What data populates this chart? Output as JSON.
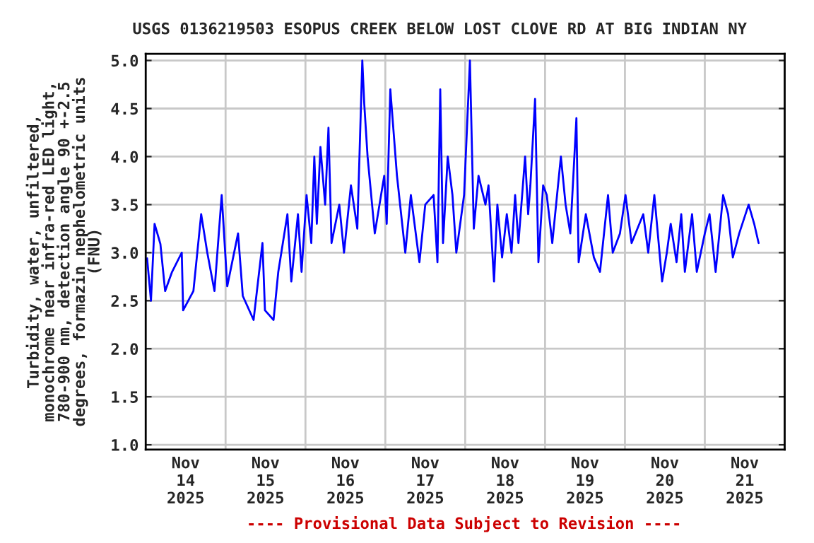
{
  "chart_data": {
    "type": "line",
    "title": "USGS 0136219503 ESOPUS CREEK BELOW LOST CLOVE RD AT BIG INDIAN NY",
    "ylabel": "Turbidity, water, unfiltered,\nmonochrome near infra-red LED light,\n780-900 nm, detection angle 90 +-2.5\ndegrees, formazin nephelometric units\n(FNU)",
    "annotations": [
      "---- Provisional Data Subject to Revision ----"
    ],
    "x": [
      "2025-11-14T00:25",
      "2025-11-14T01:35",
      "2025-11-14T02:40",
      "2025-11-14T04:25",
      "2025-11-14T05:50",
      "2025-11-14T07:55",
      "2025-11-14T10:50",
      "2025-11-14T11:15",
      "2025-11-14T14:20",
      "2025-11-14T16:40",
      "2025-11-14T18:30",
      "2025-11-14T20:40",
      "2025-11-14T22:50",
      "2025-11-15T00:30",
      "2025-11-15T03:45",
      "2025-11-15T05:10",
      "2025-11-15T08:25",
      "2025-11-15T11:05",
      "2025-11-15T11:50",
      "2025-11-15T14:25",
      "2025-11-15T15:50",
      "2025-11-15T18:35",
      "2025-11-15T19:45",
      "2025-11-15T21:45",
      "2025-11-15T22:50",
      "2025-11-16T00:20",
      "2025-11-16T01:45",
      "2025-11-16T02:40",
      "2025-11-16T03:25",
      "2025-11-16T04:30",
      "2025-11-16T05:55",
      "2025-11-16T06:55",
      "2025-11-16T07:50",
      "2025-11-16T10:10",
      "2025-11-16T11:35",
      "2025-11-16T13:40",
      "2025-11-16T15:35",
      "2025-11-16T17:05",
      "2025-11-16T17:40",
      "2025-11-16T18:40",
      "2025-11-16T20:50",
      "2025-11-16T23:40",
      "2025-11-17T00:25",
      "2025-11-17T01:30",
      "2025-11-17T03:30",
      "2025-11-17T06:00",
      "2025-11-17T07:40",
      "2025-11-17T10:15",
      "2025-11-17T12:00",
      "2025-11-17T14:30",
      "2025-11-17T15:40",
      "2025-11-17T16:30",
      "2025-11-17T17:20",
      "2025-11-17T18:45",
      "2025-11-17T20:10",
      "2025-11-17T21:20",
      "2025-11-17T23:40",
      "2025-11-18T01:25",
      "2025-11-18T02:35",
      "2025-11-18T04:00",
      "2025-11-18T06:05",
      "2025-11-18T07:00",
      "2025-11-18T08:40",
      "2025-11-18T09:40",
      "2025-11-18T11:05",
      "2025-11-18T12:30",
      "2025-11-18T13:55",
      "2025-11-18T15:00",
      "2025-11-18T16:00",
      "2025-11-18T18:00",
      "2025-11-18T18:55",
      "2025-11-18T19:35",
      "2025-11-18T21:00",
      "2025-11-18T22:00",
      "2025-11-18T23:25",
      "2025-11-19T00:30",
      "2025-11-19T02:10",
      "2025-11-19T04:45",
      "2025-11-19T06:10",
      "2025-11-19T07:35",
      "2025-11-19T09:25",
      "2025-11-19T10:05",
      "2025-11-19T12:15",
      "2025-11-19T14:40",
      "2025-11-19T16:30",
      "2025-11-19T18:55",
      "2025-11-19T20:20",
      "2025-11-19T22:30",
      "2025-11-20T00:10",
      "2025-11-20T02:00",
      "2025-11-20T05:30",
      "2025-11-20T07:00",
      "2025-11-20T08:50",
      "2025-11-20T11:10",
      "2025-11-20T12:35",
      "2025-11-20T13:45",
      "2025-11-20T15:30",
      "2025-11-20T16:55",
      "2025-11-20T18:00",
      "2025-11-20T20:10",
      "2025-11-20T21:35",
      "2025-11-21T00:00",
      "2025-11-21T01:25",
      "2025-11-21T03:15",
      "2025-11-21T05:30",
      "2025-11-21T07:00",
      "2025-11-21T08:25",
      "2025-11-21T10:20",
      "2025-11-21T13:10",
      "2025-11-21T14:50",
      "2025-11-21T16:10"
    ],
    "series": [
      {
        "color": "#0000ff",
        "values": [
          2.94,
          2.5,
          3.3,
          3.09,
          2.6,
          2.8,
          3.0,
          2.4,
          2.6,
          3.4,
          3.0,
          2.6,
          3.6,
          2.65,
          3.2,
          2.55,
          2.3,
          3.1,
          2.4,
          2.3,
          2.8,
          3.4,
          2.7,
          3.4,
          2.8,
          3.6,
          3.1,
          4.0,
          3.3,
          4.1,
          3.5,
          4.3,
          3.1,
          3.5,
          3.0,
          3.7,
          3.25,
          5.0,
          4.55,
          4.0,
          3.2,
          3.8,
          3.3,
          4.7,
          3.8,
          3.0,
          3.6,
          2.9,
          3.5,
          3.6,
          2.9,
          4.7,
          3.1,
          4.0,
          3.6,
          3.0,
          3.6,
          5.0,
          3.25,
          3.8,
          3.5,
          3.7,
          2.7,
          3.5,
          2.95,
          3.4,
          3.0,
          3.6,
          3.1,
          4.0,
          3.4,
          3.7,
          4.6,
          2.9,
          3.7,
          3.6,
          3.1,
          4.0,
          3.5,
          3.2,
          4.4,
          2.9,
          3.4,
          2.95,
          2.8,
          3.6,
          3.0,
          3.2,
          3.6,
          3.1,
          3.4,
          3.0,
          3.6,
          2.7,
          3.0,
          3.3,
          2.9,
          3.4,
          2.8,
          3.4,
          2.8,
          3.2,
          3.4,
          2.8,
          3.6,
          3.4,
          2.95,
          3.2,
          3.5,
          3.3,
          3.1
        ]
      }
    ],
    "xlim": [
      "2025-11-14T00:00",
      "2025-11-22T00:00"
    ],
    "xticks": [
      {
        "value": "2025-11-14T00:00",
        "label": null
      },
      {
        "value": "2025-11-15T00:00",
        "label": null
      },
      {
        "value": "2025-11-16T00:00",
        "label": null
      },
      {
        "value": "2025-11-17T00:00",
        "label": null
      },
      {
        "value": "2025-11-18T00:00",
        "label": null
      },
      {
        "value": "2025-11-19T00:00",
        "label": null
      },
      {
        "value": "2025-11-20T00:00",
        "label": null
      },
      {
        "value": "2025-11-21T00:00",
        "label": null
      },
      {
        "value": "2025-11-22T00:00",
        "label": null
      },
      {
        "value": "2025-11-14T12:00",
        "label": "Nov\n14\n2025"
      },
      {
        "value": "2025-11-15T12:00",
        "label": "Nov\n15\n2025"
      },
      {
        "value": "2025-11-16T12:00",
        "label": "Nov\n16\n2025"
      },
      {
        "value": "2025-11-17T12:00",
        "label": "Nov\n17\n2025"
      },
      {
        "value": "2025-11-18T12:00",
        "label": "Nov\n18\n2025"
      },
      {
        "value": "2025-11-19T12:00",
        "label": "Nov\n19\n2025"
      },
      {
        "value": "2025-11-20T12:00",
        "label": "Nov\n20\n2025"
      },
      {
        "value": "2025-11-21T12:00",
        "label": "Nov\n21\n2025"
      }
    ],
    "ylim": [
      0.95,
      5.07
    ],
    "yticks": [
      {
        "value": 1,
        "label": "1.0"
      },
      {
        "value": 1.5,
        "label": "1.5"
      },
      {
        "value": 2,
        "label": "2.0"
      },
      {
        "value": 2.5,
        "label": "2.5"
      },
      {
        "value": 3,
        "label": "3.0"
      },
      {
        "value": 3.5,
        "label": "3.5"
      },
      {
        "value": 4,
        "label": "4.0"
      },
      {
        "value": 4.5,
        "label": "4.5"
      },
      {
        "value": 5,
        "label": "5.0"
      }
    ],
    "grid": true,
    "marker": "none",
    "line_style": "solid"
  }
}
